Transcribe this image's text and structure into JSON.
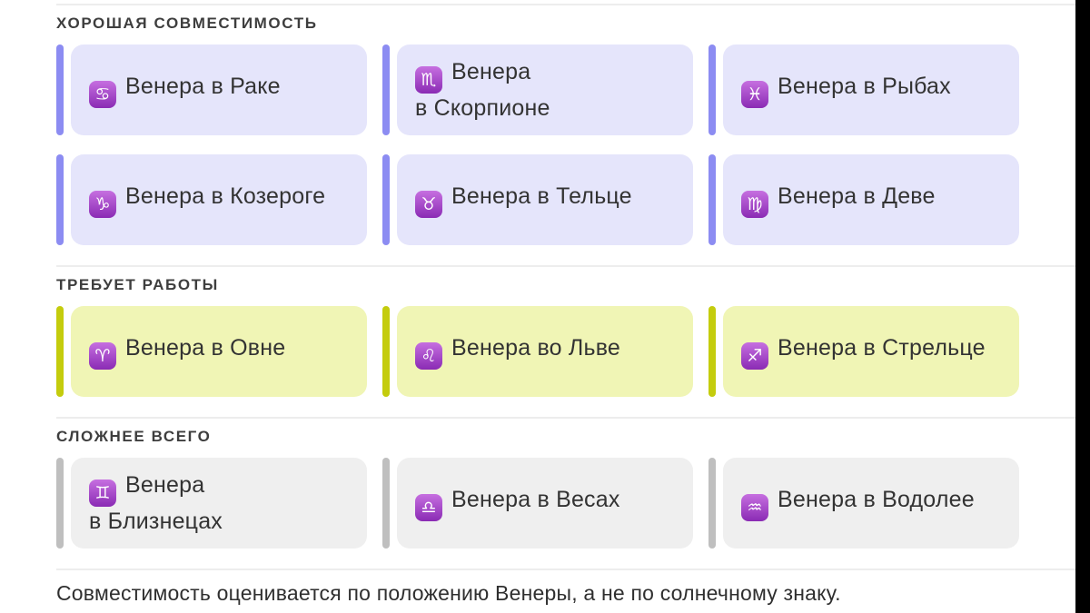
{
  "colors": {
    "background": "#FFFFFF",
    "divider": "#EDEDED",
    "title_text": "#3E3E3E",
    "label_text": "#333333",
    "footnote_text": "#2F2F2F",
    "letterbox": "#000000",
    "icon_top": "#C66FE0",
    "icon_bottom": "#8A2BB4"
  },
  "sections": [
    {
      "id": "good",
      "title": "ХОРОШАЯ СОВМЕСТИМОСТЬ",
      "accent_color": "#8C8CF2",
      "card_bg": "#E5E5FB",
      "cards": [
        {
          "sign": "cancer",
          "glyph": "♋",
          "label": "Венера в Раке"
        },
        {
          "sign": "scorpio",
          "glyph": "♏",
          "label": "Венера\nв Скорпионе"
        },
        {
          "sign": "pisces",
          "glyph": "♓",
          "label": "Венера в Рыбах"
        },
        {
          "sign": "capricorn",
          "glyph": "♑",
          "label": "Венера в Козероге"
        },
        {
          "sign": "taurus",
          "glyph": "♉",
          "label": "Венера в Тельце"
        },
        {
          "sign": "virgo",
          "glyph": "♍",
          "label": "Венера в Деве"
        }
      ]
    },
    {
      "id": "work",
      "title": "ТРЕБУЕТ РАБОТЫ",
      "accent_color": "#C4CC0D",
      "card_bg": "#F0F5B5",
      "cards": [
        {
          "sign": "aries",
          "glyph": "♈",
          "label": "Венера в Овне"
        },
        {
          "sign": "leo",
          "glyph": "♌",
          "label": "Венера во Льве"
        },
        {
          "sign": "sagittarius",
          "glyph": "♐",
          "label": "Венера в Стрельце"
        }
      ]
    },
    {
      "id": "hard",
      "title": "СЛОЖНЕЕ ВСЕГО",
      "accent_color": "#BFBFBF",
      "card_bg": "#EFEFEF",
      "cards": [
        {
          "sign": "gemini",
          "glyph": "♊",
          "label": "Венера\nв Близнецах"
        },
        {
          "sign": "libra",
          "glyph": "♎",
          "label": "Венера в Весах"
        },
        {
          "sign": "aquarius",
          "glyph": "♒",
          "label": "Венера в Водолее"
        }
      ]
    }
  ],
  "footnote": "Совместимость оценивается по положению Венеры, а не по солнечному знаку."
}
